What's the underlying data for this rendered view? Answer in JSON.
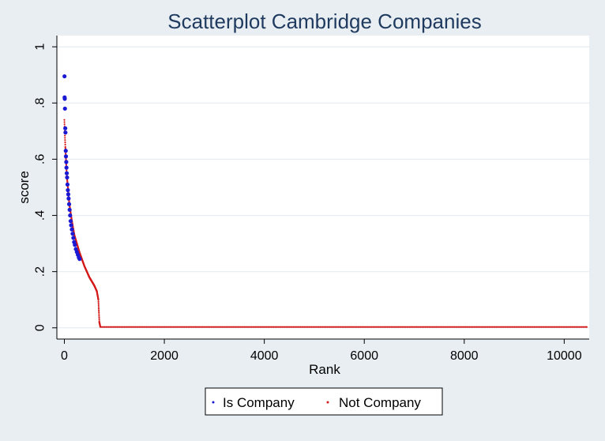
{
  "chart_data": {
    "type": "scatter",
    "title": "Scatterplot Cambridge Companies",
    "xlabel": "Rank",
    "ylabel": "score",
    "xlim": [
      -150,
      10500
    ],
    "ylim": [
      -0.04,
      1.04
    ],
    "xticks": [
      0,
      2000,
      4000,
      6000,
      8000,
      10000
    ],
    "xtick_labels": [
      "0",
      "2000",
      "4000",
      "6000",
      "8000",
      "10000"
    ],
    "yticks": [
      0,
      0.2,
      0.4,
      0.6,
      0.8,
      1
    ],
    "ytick_labels": [
      "0",
      ".2",
      ".4",
      ".6",
      ".8",
      "1"
    ],
    "grid": true,
    "legend_position": "bottom",
    "series": [
      {
        "name": "Is Company",
        "color": "#1a1ad4",
        "points": [
          [
            3,
            0.895
          ],
          [
            5,
            0.82
          ],
          [
            8,
            0.815
          ],
          [
            12,
            0.78
          ],
          [
            18,
            0.71
          ],
          [
            22,
            0.695
          ],
          [
            28,
            0.63
          ],
          [
            32,
            0.61
          ],
          [
            38,
            0.59
          ],
          [
            42,
            0.57
          ],
          [
            48,
            0.55
          ],
          [
            55,
            0.535
          ],
          [
            62,
            0.51
          ],
          [
            70,
            0.49
          ],
          [
            78,
            0.475
          ],
          [
            85,
            0.46
          ],
          [
            95,
            0.44
          ],
          [
            105,
            0.42
          ],
          [
            115,
            0.4
          ],
          [
            125,
            0.38
          ],
          [
            135,
            0.365
          ],
          [
            150,
            0.35
          ],
          [
            165,
            0.335
          ],
          [
            180,
            0.32
          ],
          [
            195,
            0.305
          ],
          [
            210,
            0.295
          ],
          [
            230,
            0.28
          ],
          [
            250,
            0.27
          ],
          [
            270,
            0.26
          ],
          [
            290,
            0.25
          ],
          [
            305,
            0.245
          ]
        ]
      },
      {
        "name": "Not Company",
        "color": "#d41a1a",
        "curve": [
          [
            0,
            0.74
          ],
          [
            20,
            0.64
          ],
          [
            50,
            0.54
          ],
          [
            100,
            0.44
          ],
          [
            150,
            0.38
          ],
          [
            200,
            0.33
          ],
          [
            300,
            0.27
          ],
          [
            400,
            0.22
          ],
          [
            500,
            0.18
          ],
          [
            600,
            0.15
          ],
          [
            650,
            0.13
          ],
          [
            680,
            0.1
          ],
          [
            700,
            0.02
          ],
          [
            720,
            0.003
          ],
          [
            10450,
            0.003
          ]
        ]
      }
    ]
  }
}
